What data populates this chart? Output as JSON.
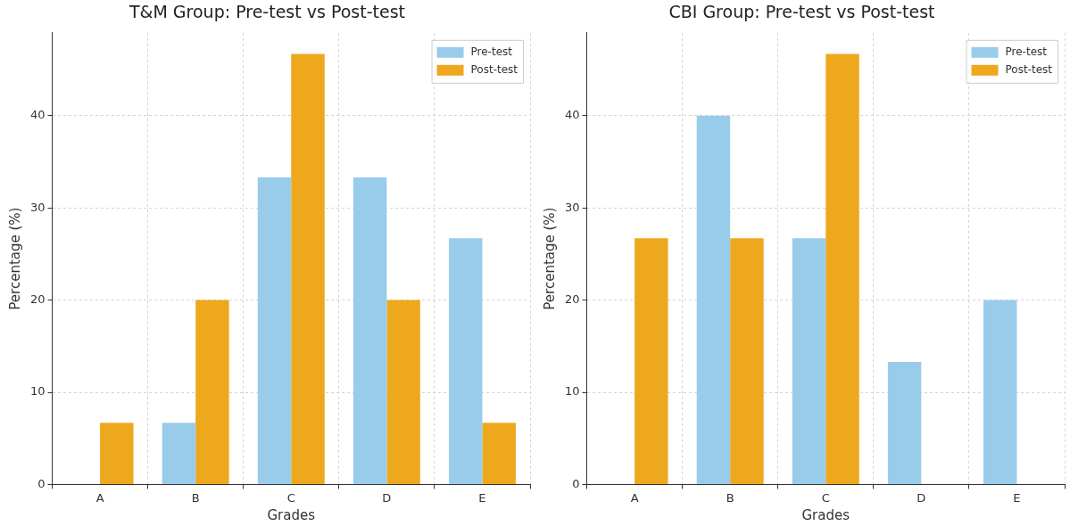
{
  "chart_data": [
    {
      "type": "bar",
      "title": "T&M Group: Pre-test vs Post-test",
      "xlabel": "Grades",
      "ylabel": "Percentage (%)",
      "categories": [
        "A",
        "B",
        "C",
        "D",
        "E"
      ],
      "series": [
        {
          "name": "Pre-test",
          "color": "#99cceb",
          "values": [
            0,
            6.7,
            33.3,
            33.3,
            26.7
          ]
        },
        {
          "name": "Post-test",
          "color": "#eea81e",
          "values": [
            6.7,
            20,
            46.7,
            20,
            6.7
          ]
        }
      ],
      "ylim": [
        0,
        49
      ],
      "yticks": [
        0,
        10,
        20,
        30,
        40
      ],
      "grid": true,
      "legend": "top right"
    },
    {
      "type": "bar",
      "title": "CBI Group: Pre-test vs Post-test",
      "xlabel": "Grades",
      "ylabel": "Percentage (%)",
      "categories": [
        "A",
        "B",
        "C",
        "D",
        "E"
      ],
      "series": [
        {
          "name": "Pre-test",
          "color": "#99cceb",
          "values": [
            0,
            40,
            26.7,
            13.3,
            20
          ]
        },
        {
          "name": "Post-test",
          "color": "#eea81e",
          "values": [
            26.7,
            26.7,
            46.7,
            0,
            0
          ]
        }
      ],
      "ylim": [
        0,
        49
      ],
      "yticks": [
        0,
        10,
        20,
        30,
        40
      ],
      "grid": true,
      "legend": "top right"
    }
  ]
}
